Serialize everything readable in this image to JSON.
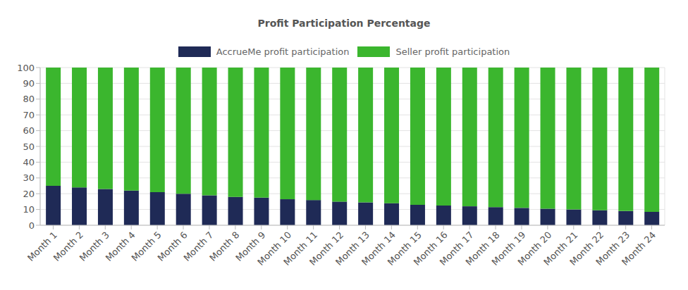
{
  "chart_data": {
    "type": "bar",
    "title": "Profit Participation Percentage",
    "categories": [
      "Month 1",
      "Month 2",
      "Month 3",
      "Month 4",
      "Month 5",
      "Month 6",
      "Month 7",
      "Month 8",
      "Month 9",
      "Month 10",
      "Month 11",
      "Month 12",
      "Month 13",
      "Month 14",
      "Month 15",
      "Month 16",
      "Month 17",
      "Month 18",
      "Month 19",
      "Month 20",
      "Month 21",
      "Month 22",
      "Month 23",
      "Month 24"
    ],
    "series": [
      {
        "name": "AccrueMe profit participation",
        "color": "#1f2a56",
        "values": [
          25,
          24,
          23,
          22,
          21,
          20,
          19,
          18,
          17.5,
          16.5,
          16,
          15,
          14.5,
          14,
          13,
          12.5,
          12,
          11.5,
          11,
          10.5,
          10,
          9.5,
          9,
          8.5
        ]
      },
      {
        "name": "Seller profit participation",
        "color": "#3bb62e",
        "values": [
          75,
          76,
          77,
          78,
          79,
          80,
          81,
          82,
          82.5,
          83.5,
          84,
          85,
          85.5,
          86,
          87,
          87.5,
          88,
          88.5,
          89,
          89.5,
          90,
          90.5,
          91,
          91.5
        ]
      }
    ],
    "ylim": [
      0,
      100
    ],
    "yticks": [
      0,
      10,
      20,
      30,
      40,
      50,
      60,
      70,
      80,
      90,
      100
    ],
    "stacked": true,
    "grid": true,
    "legend": "top"
  }
}
